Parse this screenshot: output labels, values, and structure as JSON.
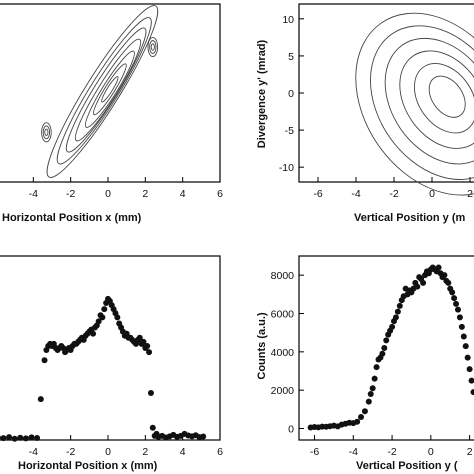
{
  "chart_data": [
    {
      "type": "contour",
      "xlabel": "Horizontal Position x  (mm)",
      "ylabel": "",
      "xlim": [
        -6,
        6
      ],
      "ylim": [
        -12,
        12
      ],
      "x_ticks": [
        "-4",
        "-2",
        "0",
        "2",
        "4",
        "6"
      ],
      "y_ticks": [],
      "peak": {
        "x": 0,
        "y": 0
      },
      "contours": [
        {
          "cx": -0.3,
          "cy": 0.2,
          "rx": 5.4,
          "ry": 0.9,
          "angle": 58
        },
        {
          "cx": -0.2,
          "cy": 0.3,
          "rx": 4.6,
          "ry": 0.75,
          "angle": 58
        },
        {
          "cx": -0.1,
          "cy": 0.4,
          "rx": 3.9,
          "ry": 0.62,
          "angle": 58
        },
        {
          "cx": 0.0,
          "cy": 0.4,
          "rx": 3.2,
          "ry": 0.5,
          "angle": 58
        },
        {
          "cx": 0.1,
          "cy": 0.5,
          "rx": 2.4,
          "ry": 0.38,
          "angle": 58
        },
        {
          "cx": 0.1,
          "cy": 0.5,
          "rx": 1.6,
          "ry": 0.26,
          "angle": 58
        },
        {
          "cx": 0.1,
          "cy": 0.5,
          "rx": 0.8,
          "ry": 0.14,
          "angle": 58
        }
      ]
    },
    {
      "type": "contour",
      "xlabel": "Vertical Position y  (m",
      "ylabel": "Divergence y' (mrad)",
      "xlim": [
        -7,
        3
      ],
      "ylim": [
        -12,
        12
      ],
      "x_ticks": [
        "-6",
        "-4",
        "-2",
        "0",
        "2"
      ],
      "y_ticks": [
        "-10",
        "-5",
        "0",
        "5",
        "10"
      ],
      "contours": [
        {
          "cx": 0.3,
          "cy": -1.5,
          "rx": 3.8,
          "ry": 5.2,
          "angle": 35
        },
        {
          "cx": 0.4,
          "cy": -1.3,
          "rx": 3.2,
          "ry": 4.4,
          "angle": 35
        },
        {
          "cx": 0.5,
          "cy": -1.1,
          "rx": 2.6,
          "ry": 3.6,
          "angle": 35
        },
        {
          "cx": 0.6,
          "cy": -0.9,
          "rx": 2.0,
          "ry": 2.8,
          "angle": 35
        },
        {
          "cx": 0.7,
          "cy": -0.7,
          "rx": 1.4,
          "ry": 2.0,
          "angle": 35
        },
        {
          "cx": 0.8,
          "cy": -0.5,
          "rx": 0.8,
          "ry": 1.2,
          "angle": 35
        }
      ]
    },
    {
      "type": "scatter",
      "xlabel": "Horizontal Position x (mm)",
      "ylabel": "",
      "xlim": [
        -6,
        6
      ],
      "ylim": [
        0,
        9000
      ],
      "x_ticks": [
        "-4",
        "-2",
        "0",
        "2",
        "4",
        "6"
      ],
      "y_ticks": [],
      "x": [
        -5.9,
        -5.6,
        -5.3,
        -5.0,
        -4.7,
        -4.4,
        -4.1,
        -3.8,
        -3.6,
        -3.4,
        -3.3,
        -3.2,
        -3.1,
        -3.0,
        -2.9,
        -2.8,
        -2.7,
        -2.6,
        -2.5,
        -2.4,
        -2.3,
        -2.2,
        -2.1,
        -2.0,
        -1.9,
        -1.8,
        -1.7,
        -1.6,
        -1.5,
        -1.4,
        -1.3,
        -1.2,
        -1.1,
        -1.0,
        -0.9,
        -0.8,
        -0.7,
        -0.6,
        -0.5,
        -0.4,
        -0.3,
        -0.2,
        -0.1,
        0.0,
        0.1,
        0.2,
        0.3,
        0.4,
        0.5,
        0.6,
        0.7,
        0.8,
        0.9,
        1.0,
        1.1,
        1.2,
        1.3,
        1.4,
        1.5,
        1.6,
        1.7,
        1.8,
        1.9,
        2.0,
        2.1,
        2.2,
        2.3,
        2.4,
        2.5,
        2.6,
        2.7,
        2.9,
        3.1,
        3.3,
        3.5,
        3.7,
        3.9,
        4.1,
        4.3,
        4.5,
        4.7,
        4.9,
        5.1
      ],
      "y": [
        120,
        90,
        140,
        60,
        110,
        80,
        130,
        100,
        2000,
        3900,
        4400,
        4600,
        4700,
        4600,
        4700,
        4500,
        4400,
        4500,
        4600,
        4500,
        4300,
        4400,
        4500,
        4400,
        4600,
        4700,
        4700,
        4800,
        4900,
        5000,
        4900,
        5100,
        5200,
        5300,
        5400,
        5200,
        5500,
        5600,
        5800,
        6100,
        6000,
        6400,
        6700,
        6900,
        6800,
        6600,
        6400,
        6200,
        6000,
        5700,
        5500,
        5300,
        5100,
        5200,
        5000,
        5000,
        4900,
        4800,
        4700,
        4900,
        5000,
        4700,
        4800,
        4500,
        4600,
        4300,
        2300,
        600,
        200,
        300,
        150,
        200,
        120,
        180,
        250,
        150,
        200,
        300,
        220,
        180,
        230,
        140,
        170
      ]
    },
    {
      "type": "scatter",
      "xlabel": "Vertical Position y (",
      "ylabel": "Counts (a.u.)",
      "xlim": [
        -6.8,
        3
      ],
      "ylim": [
        -600,
        9000
      ],
      "x_ticks": [
        "-6",
        "-4",
        "-2",
        "0",
        "2"
      ],
      "y_ticks": [
        "0",
        "2000",
        "4000",
        "6000",
        "8000"
      ],
      "x": [
        -6.2,
        -6.0,
        -5.8,
        -5.6,
        -5.4,
        -5.2,
        -5.0,
        -4.8,
        -4.6,
        -4.4,
        -4.2,
        -4.0,
        -3.8,
        -3.6,
        -3.4,
        -3.2,
        -3.1,
        -3.0,
        -2.9,
        -2.8,
        -2.7,
        -2.6,
        -2.5,
        -2.4,
        -2.3,
        -2.2,
        -2.1,
        -2.0,
        -1.9,
        -1.8,
        -1.7,
        -1.6,
        -1.5,
        -1.4,
        -1.3,
        -1.2,
        -1.1,
        -1.0,
        -0.9,
        -0.8,
        -0.7,
        -0.6,
        -0.5,
        -0.4,
        -0.3,
        -0.2,
        -0.1,
        0.0,
        0.1,
        0.2,
        0.3,
        0.4,
        0.5,
        0.6,
        0.7,
        0.8,
        0.9,
        1.0,
        1.1,
        1.2,
        1.3,
        1.4,
        1.5,
        1.6,
        1.7,
        1.8,
        1.9,
        2.0,
        2.1,
        2.2
      ],
      "y": [
        50,
        80,
        60,
        100,
        90,
        120,
        150,
        110,
        200,
        250,
        300,
        280,
        350,
        600,
        900,
        1400,
        1800,
        2100,
        2600,
        3200,
        3600,
        3700,
        3900,
        4200,
        4600,
        4900,
        5100,
        5300,
        5600,
        5800,
        6100,
        6400,
        6700,
        6900,
        7300,
        7000,
        7200,
        7100,
        7300,
        7600,
        7400,
        7900,
        7800,
        7600,
        8000,
        8200,
        8100,
        8300,
        8400,
        8300,
        8200,
        8400,
        8100,
        7900,
        8000,
        7700,
        7600,
        7300,
        7100,
        6800,
        6500,
        6200,
        5800,
        5300,
        4800,
        4300,
        3700,
        3100,
        2500,
        1900
      ]
    }
  ]
}
